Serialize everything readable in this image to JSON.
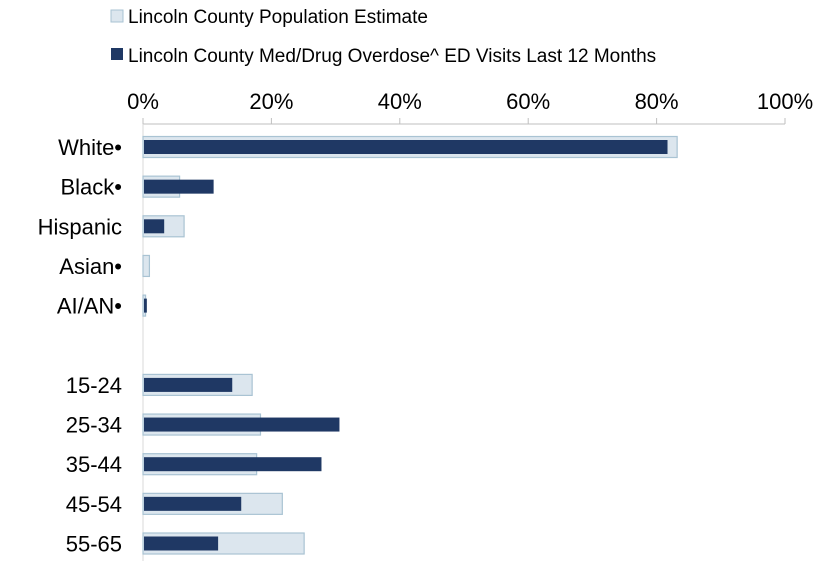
{
  "chart_data": {
    "type": "bar",
    "orientation": "horizontal",
    "title": "",
    "xlabel": "",
    "ylabel": "",
    "xlim": [
      0,
      100
    ],
    "x_tick_labels": [
      "0%",
      "20%",
      "40%",
      "60%",
      "80%",
      "100%"
    ],
    "x_tick_values": [
      0,
      20,
      40,
      60,
      80,
      100
    ],
    "x_axis_position": "top",
    "grid": false,
    "legend_position": "top",
    "categories": [
      "White•",
      "Black•",
      "Hispanic",
      "Asian•",
      "AI/AN•",
      "",
      "15-24",
      "25-34",
      "35-44",
      "45-54",
      "55-65"
    ],
    "series": [
      {
        "name": "Lincoln County Population Estimate",
        "color": "#dce6ee",
        "border_color": "#a9c3d3",
        "values": [
          83.2,
          5.7,
          6.4,
          1.0,
          0.4,
          null,
          17.0,
          18.3,
          17.7,
          21.7,
          25.1
        ]
      },
      {
        "name": "Lincoln County Med/Drug Overdose^ ED Visits Last 12 Months",
        "color": "#1f3864",
        "values": [
          81.7,
          11.0,
          3.3,
          0.0,
          0.6,
          null,
          13.9,
          30.6,
          27.8,
          15.3,
          11.7
        ]
      }
    ]
  }
}
